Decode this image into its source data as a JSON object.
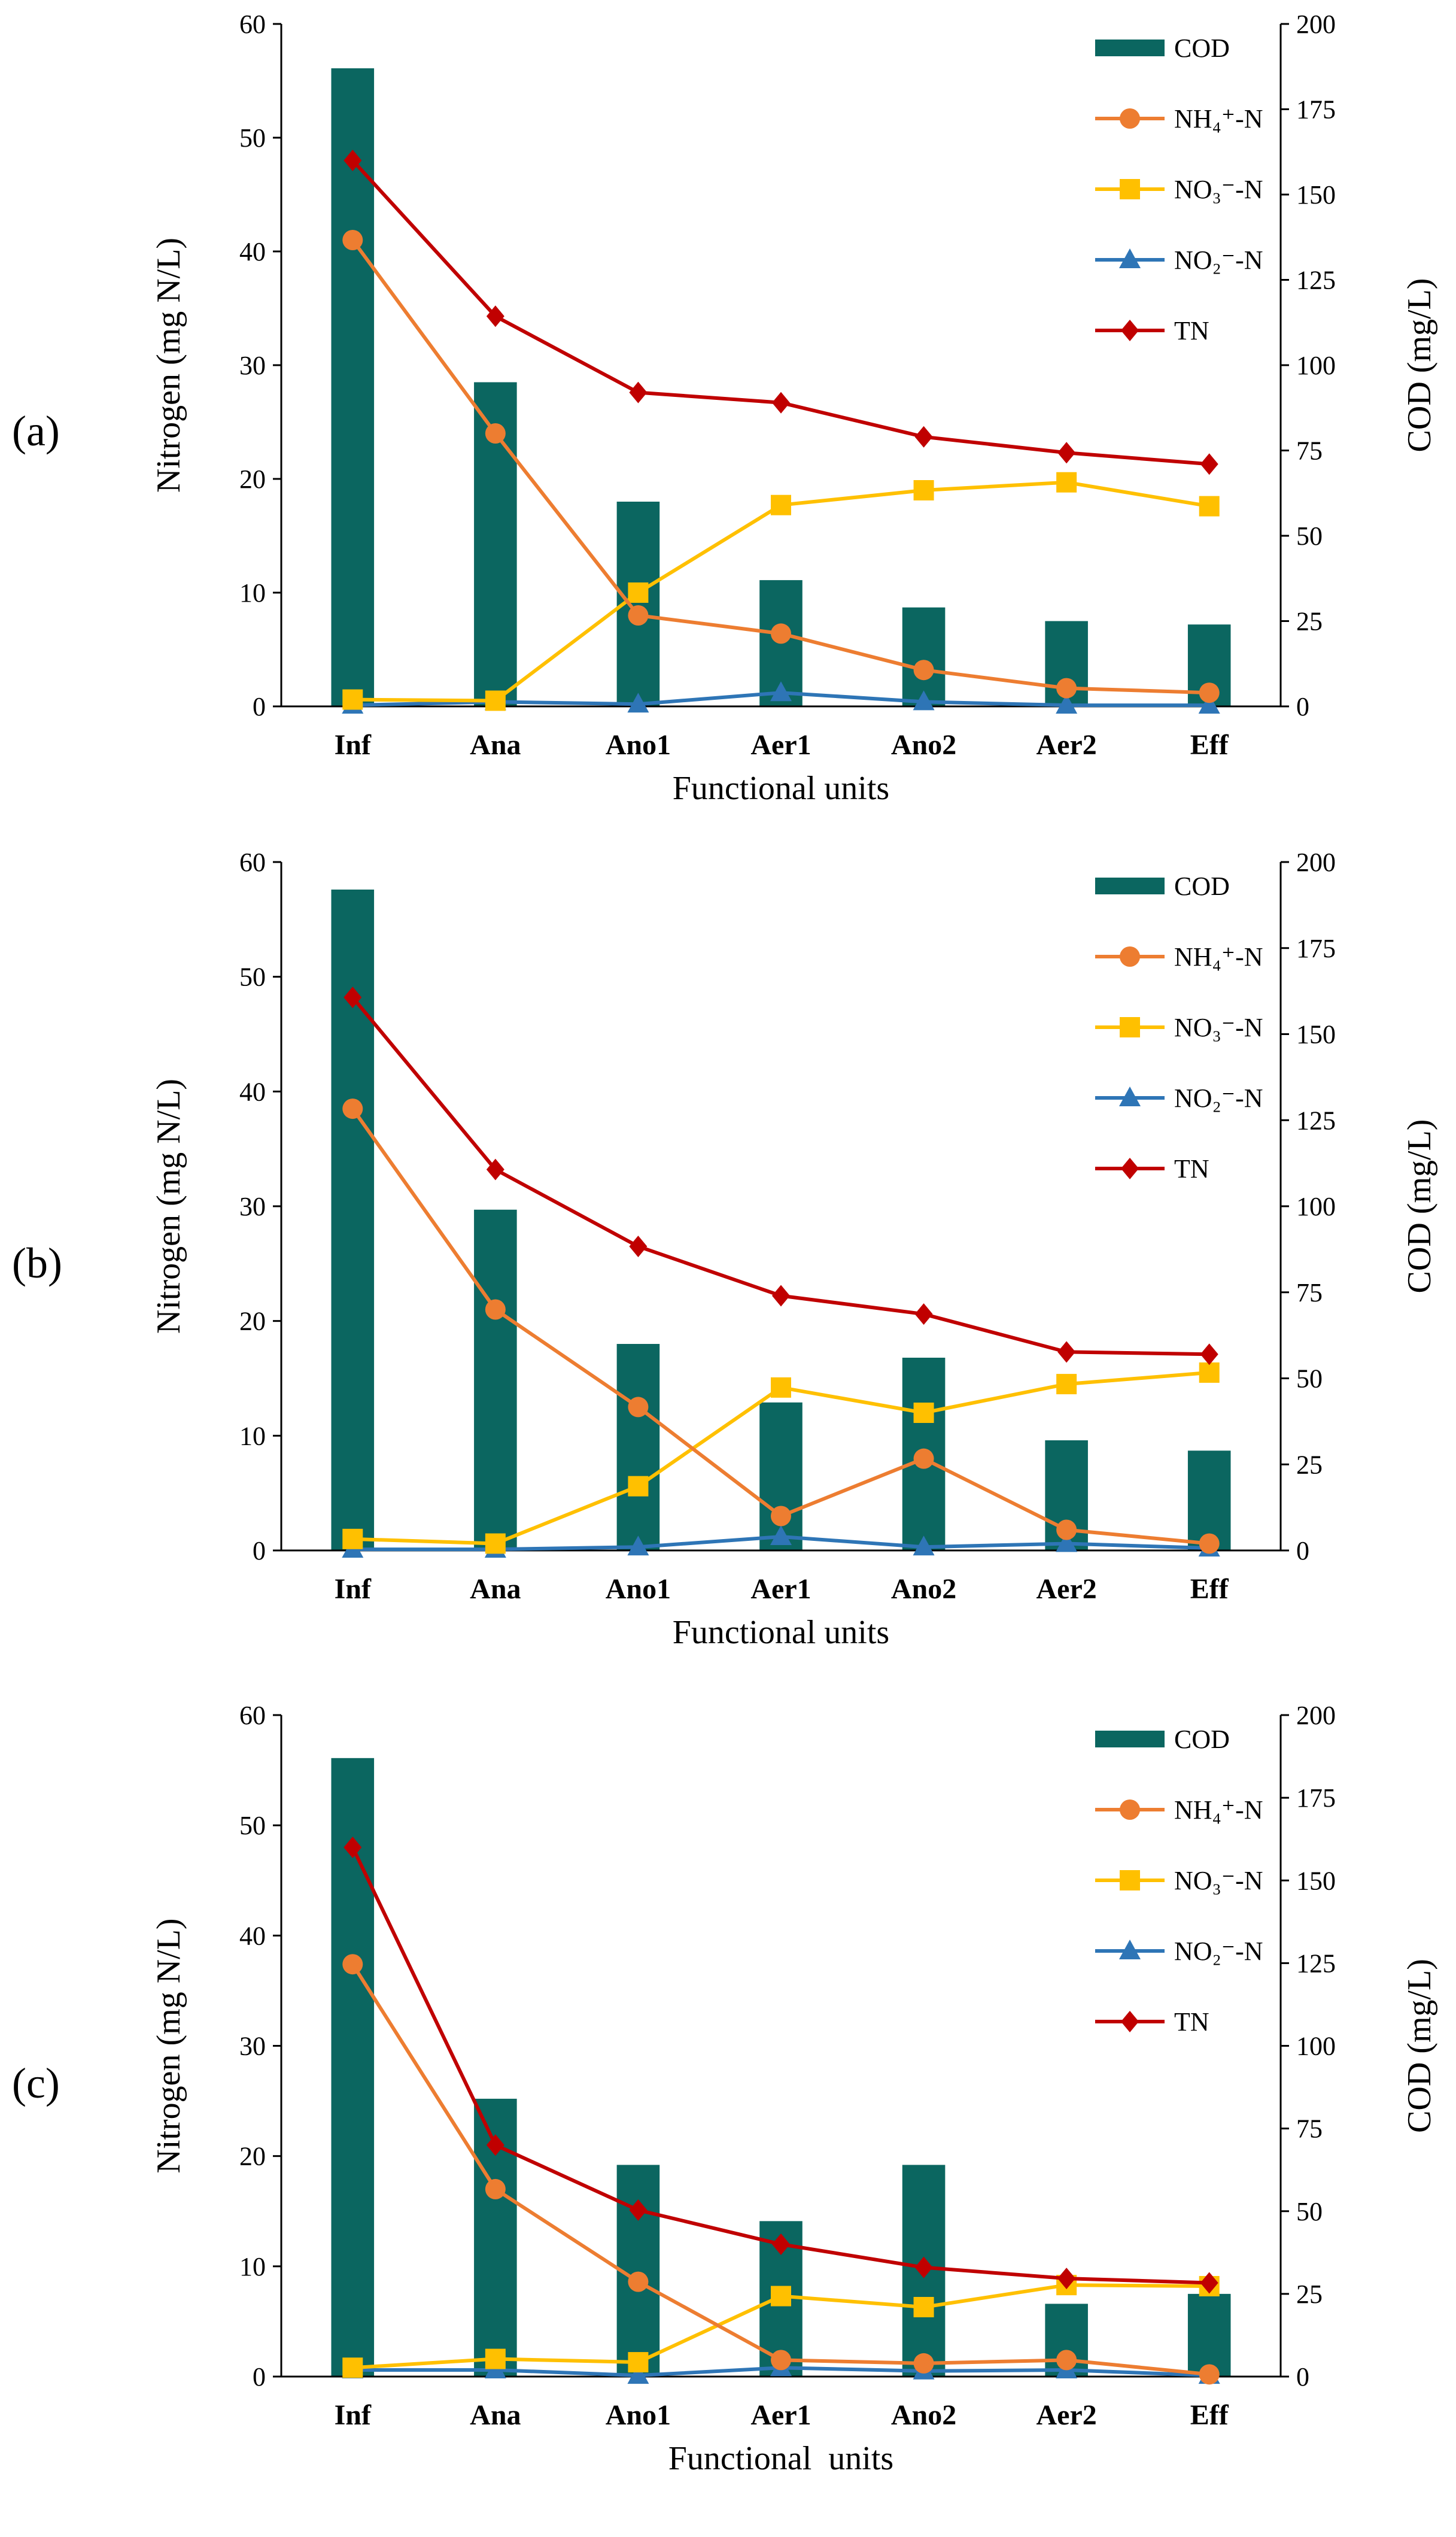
{
  "series_styles": {
    "COD": {
      "color": "#0b6660",
      "kind": "bar"
    },
    "NH4": {
      "color": "#ed7d31",
      "kind": "line",
      "marker": "circle"
    },
    "NO3": {
      "color": "#ffc000",
      "kind": "line",
      "marker": "square"
    },
    "NO2": {
      "color": "#2e75b6",
      "kind": "line",
      "marker": "triangle"
    },
    "TN": {
      "color": "#c00000",
      "kind": "line",
      "marker": "diamond"
    }
  },
  "chart_data": [
    {
      "type": "bar+line",
      "panel_label": "(a)",
      "xlabel": "Functional units",
      "ylabel": "Nitrogen (mg N/L)",
      "y2label": "COD (mg/L)",
      "categories": [
        "Inf",
        "Ana",
        "Ano1",
        "Aer1",
        "Ano2",
        "Aer2",
        "Eff"
      ],
      "ylim": [
        0,
        60
      ],
      "yticks": [
        "0",
        "10",
        "20",
        "30",
        "40",
        "50",
        "60"
      ],
      "y2lim": [
        0,
        200
      ],
      "y2ticks": [
        "0",
        "25",
        "50",
        "75",
        "100",
        "125",
        "150",
        "175",
        "200"
      ],
      "legend_position": "top-right",
      "series": [
        {
          "key": "COD",
          "name": "COD",
          "axis": "right",
          "values": [
            187,
            95,
            60,
            37,
            29,
            25,
            24
          ]
        },
        {
          "key": "NH4",
          "name": "NH₄⁺-N",
          "axis": "left",
          "values": [
            41,
            24,
            8,
            6.4,
            3.2,
            1.6,
            1.2
          ]
        },
        {
          "key": "NO3",
          "name": "NO₃⁻-N",
          "axis": "left",
          "values": [
            0.6,
            0.5,
            10,
            17.7,
            19,
            19.7,
            17.6
          ]
        },
        {
          "key": "NO2",
          "name": "NO₂⁻-N",
          "axis": "left",
          "values": [
            0.1,
            0.4,
            0.2,
            1.2,
            0.4,
            0.1,
            0.1
          ]
        },
        {
          "key": "TN",
          "name": "TN",
          "axis": "left",
          "values": [
            48,
            34.3,
            27.6,
            26.7,
            23.7,
            22.3,
            21.3
          ]
        }
      ]
    },
    {
      "type": "bar+line",
      "panel_label": "(b)",
      "xlabel": "Functional units",
      "ylabel": "Nitrogen (mg N/L)",
      "y2label": "COD (mg/L)",
      "categories": [
        "Inf",
        "Ana",
        "Ano1",
        "Aer1",
        "Ano2",
        "Aer2",
        "Eff"
      ],
      "ylim": [
        0,
        60
      ],
      "yticks": [
        "0",
        "10",
        "20",
        "30",
        "40",
        "50",
        "60"
      ],
      "y2lim": [
        0,
        200
      ],
      "y2ticks": [
        "0",
        "25",
        "50",
        "75",
        "100",
        "125",
        "150",
        "175",
        "200"
      ],
      "legend_position": "top-right",
      "series": [
        {
          "key": "COD",
          "name": "COD",
          "axis": "right",
          "values": [
            192,
            99,
            60,
            43,
            56,
            32,
            29
          ]
        },
        {
          "key": "NH4",
          "name": "NH₄⁺-N",
          "axis": "left",
          "values": [
            38.5,
            21,
            12.5,
            3,
            8,
            1.8,
            0.6
          ]
        },
        {
          "key": "NO3",
          "name": "NO₃⁻-N",
          "axis": "left",
          "values": [
            1,
            0.6,
            5.6,
            14.2,
            12,
            14.5,
            15.5
          ]
        },
        {
          "key": "NO2",
          "name": "NO₂⁻-N",
          "axis": "left",
          "values": [
            0.1,
            0.1,
            0.3,
            1.2,
            0.3,
            0.6,
            0.2
          ]
        },
        {
          "key": "TN",
          "name": "TN",
          "axis": "left",
          "values": [
            48.2,
            33.2,
            26.5,
            22.2,
            20.6,
            17.3,
            17.1
          ]
        }
      ]
    },
    {
      "type": "bar+line",
      "panel_label": "(c)",
      "xlabel": "Functional  units",
      "ylabel": "Nitrogen (mg N/L)",
      "y2label": "COD (mg/L)",
      "categories": [
        "Inf",
        "Ana",
        "Ano1",
        "Aer1",
        "Ano2",
        "Aer2",
        "Eff"
      ],
      "ylim": [
        0,
        60
      ],
      "yticks": [
        "0",
        "10",
        "20",
        "30",
        "40",
        "50",
        "60"
      ],
      "y2lim": [
        0,
        200
      ],
      "y2ticks": [
        "0",
        "25",
        "50",
        "75",
        "100",
        "125",
        "150",
        "175",
        "200"
      ],
      "legend_position": "top-right",
      "series": [
        {
          "key": "COD",
          "name": "COD",
          "axis": "right",
          "values": [
            187,
            84,
            64,
            47,
            64,
            22,
            25
          ]
        },
        {
          "key": "NH4",
          "name": "NH₄⁺-N",
          "axis": "left",
          "values": [
            37.4,
            17,
            8.6,
            1.5,
            1.2,
            1.5,
            0.2
          ]
        },
        {
          "key": "NO3",
          "name": "NO₃⁻-N",
          "axis": "left",
          "values": [
            0.8,
            1.6,
            1.3,
            7.3,
            6.3,
            8.3,
            8.2
          ]
        },
        {
          "key": "NO2",
          "name": "NO₂⁻-N",
          "axis": "left",
          "values": [
            0.6,
            0.6,
            0.1,
            0.8,
            0.5,
            0.6,
            0.1
          ]
        },
        {
          "key": "TN",
          "name": "TN",
          "axis": "left",
          "values": [
            48,
            21,
            15.1,
            12,
            9.9,
            8.9,
            8.5
          ]
        }
      ]
    }
  ]
}
